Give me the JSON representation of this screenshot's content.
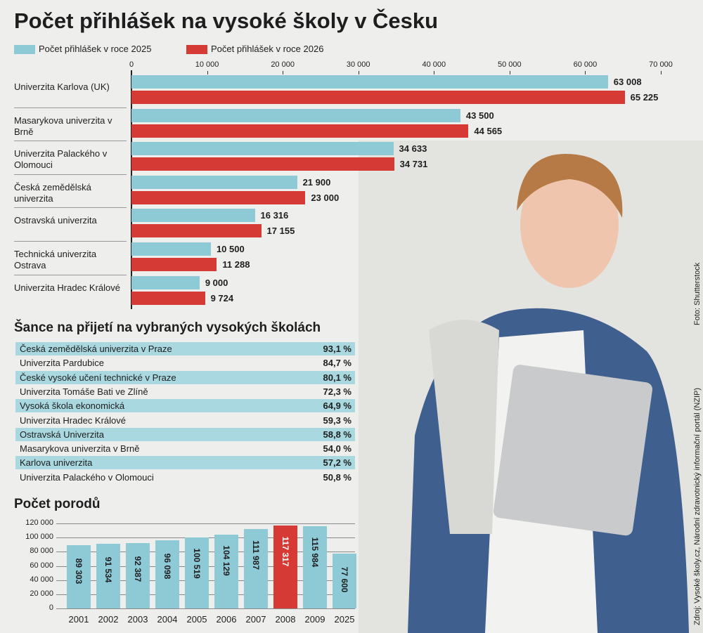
{
  "chart_data": [
    {
      "type": "hbar",
      "title": "Počet přihlášek na vysoké školy v Česku",
      "categories": [
        "Univerzita Karlova (UK)",
        "Masarykova univerzita v Brně",
        "Univerzita Palackého v Olomouci",
        "Česká zemědělská univerzita",
        "Ostravská univerzita",
        "Technická univerzita Ostrava",
        "Univerzita Hradec Králové"
      ],
      "series": [
        {
          "name": "Počet přihlášek v roce 2025",
          "color": "#8ecad6",
          "values": [
            63008,
            43500,
            34633,
            21900,
            16316,
            10500,
            9000
          ],
          "value_labels": [
            "63 008",
            "43 500",
            "34 633",
            "21 900",
            "16 316",
            "10 500",
            "9 000"
          ]
        },
        {
          "name": "Počet přihlášek v roce 2026",
          "color": "#d63a35",
          "values": [
            65225,
            44565,
            34731,
            23000,
            17155,
            11288,
            9724
          ],
          "value_labels": [
            "65 225",
            "44 565",
            "34 731",
            "23 000",
            "17 155",
            "11 288",
            "9 724"
          ]
        }
      ],
      "xlim": [
        0,
        70000
      ],
      "xticks": [
        0,
        {
          "value": 10000,
          "label": "10 000"
        },
        {
          "value": 20000,
          "label": "20 000"
        },
        {
          "value": 30000,
          "label": "30 000"
        },
        {
          "value": 40000,
          "label": "40 000"
        },
        {
          "value": 50000,
          "label": "50 000"
        },
        {
          "value": 60000,
          "label": "60 000"
        },
        {
          "value": 70000,
          "label": "70 000"
        }
      ],
      "legend": "top-left"
    },
    {
      "type": "table",
      "title": "Šance na přijetí na vybraných vysokých školách",
      "categories": [
        "Česká zemědělská univerzita v Praze",
        "Univerzita Pardubice",
        "České vysoké učení technické v Praze",
        "Univerzita Tomáše Bati ve Zlíně",
        "Vysoká škola ekonomická",
        "Univerzita Hradec Králové",
        "Ostravská Univerzita",
        "Masarykova univerzita v Brně",
        "Karlova univerzita",
        "Univerzita Palackého v Olomouci"
      ],
      "values": [
        93.1,
        84.7,
        80.1,
        72.3,
        64.9,
        59.3,
        58.8,
        54.0,
        57.2,
        50.8
      ],
      "value_labels": [
        "93,1 %",
        "84,7 %",
        "80,1 %",
        "72,3 %",
        "64,9 %",
        "59,3 %",
        "58,8 %",
        "54,0 %",
        "57,2 %",
        "50,8 %"
      ],
      "color": "#a9d8e0"
    },
    {
      "type": "bar",
      "title": "Počet porodů",
      "categories": [
        "2001",
        "2002",
        "2003",
        "2004",
        "2005",
        "2006",
        "2007",
        "2008",
        "2009",
        "2025"
      ],
      "values": [
        89303,
        91534,
        92387,
        96098,
        100519,
        104129,
        111987,
        117317,
        115984,
        77600
      ],
      "value_labels": [
        "89 303",
        "91 534",
        "92 387",
        "96 098",
        "100 519",
        "104 129",
        "111 987",
        "117 317",
        "115 984",
        "77 600"
      ],
      "colors": [
        "#8ecad6",
        "#8ecad6",
        "#8ecad6",
        "#8ecad6",
        "#8ecad6",
        "#8ecad6",
        "#8ecad6",
        "#d63a35",
        "#8ecad6",
        "#8ecad6"
      ],
      "ylim": [
        0,
        120000
      ],
      "yticks": [
        0,
        {
          "value": 20000,
          "label": "20 000"
        },
        {
          "value": 40000,
          "label": "40 000"
        },
        {
          "value": 60000,
          "label": "60 000"
        },
        {
          "value": 80000,
          "label": "80 000"
        },
        {
          "value": 100000,
          "label": "100 000"
        },
        {
          "value": 120000,
          "label": "120 000"
        }
      ],
      "grid": true
    }
  ],
  "source": "Zdroj: Vysoké školy.cz, Národní zdravotnický informační portál (NZIP)",
  "photo_credit": "Foto: Shutterstock"
}
